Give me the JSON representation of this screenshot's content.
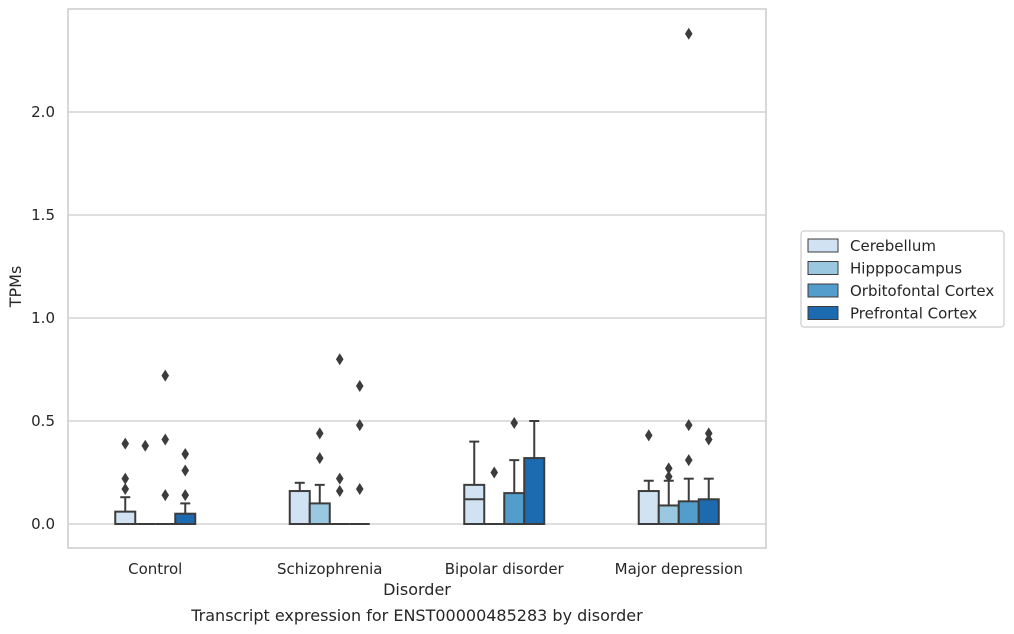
{
  "chart_data": {
    "type": "box",
    "xlabel": "Disorder",
    "ylabel": "TPMs",
    "ylim": [
      -0.12,
      2.52
    ],
    "yticks": [
      0.0,
      0.5,
      1.0,
      1.5,
      2.0
    ],
    "ytick_labels": [
      "0.0",
      "0.5",
      "1.0",
      "1.5",
      "2.0"
    ],
    "grid": "horizontal",
    "legend_position": "center-right outside",
    "categories": [
      "Control",
      "Schizophrenia",
      "Bipolar disorder",
      "Major depression"
    ],
    "series": [
      {
        "name": "Cerebellum",
        "color": "#d1e2f2",
        "boxes": [
          {
            "q1": 0.0,
            "median": 0.0,
            "q3": 0.06,
            "whisker_low": 0.0,
            "whisker_high": 0.13,
            "outliers": [
              0.39,
              0.22,
              0.17
            ]
          },
          {
            "q1": 0.0,
            "median": 0.0,
            "q3": 0.16,
            "whisker_low": 0.0,
            "whisker_high": 0.2,
            "outliers": []
          },
          {
            "q1": 0.0,
            "median": 0.12,
            "q3": 0.19,
            "whisker_low": 0.0,
            "whisker_high": 0.4,
            "outliers": []
          },
          {
            "q1": 0.0,
            "median": 0.0,
            "q3": 0.16,
            "whisker_low": 0.0,
            "whisker_high": 0.21,
            "outliers": [
              0.43
            ]
          }
        ]
      },
      {
        "name": "Hipppocampus",
        "color": "#9ac8e0",
        "boxes": [
          {
            "q1": 0.0,
            "median": 0.0,
            "q3": 0.0,
            "whisker_low": 0.0,
            "whisker_high": 0.0,
            "outliers": [
              0.38
            ]
          },
          {
            "q1": 0.0,
            "median": 0.0,
            "q3": 0.1,
            "whisker_low": 0.0,
            "whisker_high": 0.19,
            "outliers": [
              0.44,
              0.32
            ]
          },
          {
            "q1": 0.0,
            "median": 0.0,
            "q3": 0.0,
            "whisker_low": 0.0,
            "whisker_high": 0.0,
            "outliers": [
              0.25
            ]
          },
          {
            "q1": 0.0,
            "median": 0.0,
            "q3": 0.09,
            "whisker_low": 0.0,
            "whisker_high": 0.21,
            "outliers": [
              0.27,
              0.23
            ]
          }
        ]
      },
      {
        "name": "Orbitofontal Cortex",
        "color": "#529dcc",
        "boxes": [
          {
            "q1": 0.0,
            "median": 0.0,
            "q3": 0.0,
            "whisker_low": 0.0,
            "whisker_high": 0.0,
            "outliers": [
              0.72,
              0.41,
              0.14
            ]
          },
          {
            "q1": 0.0,
            "median": 0.0,
            "q3": 0.0,
            "whisker_low": 0.0,
            "whisker_high": 0.0,
            "outliers": [
              0.8,
              0.22,
              0.16
            ]
          },
          {
            "q1": 0.0,
            "median": 0.0,
            "q3": 0.15,
            "whisker_low": 0.0,
            "whisker_high": 0.31,
            "outliers": [
              0.49
            ]
          },
          {
            "q1": 0.0,
            "median": 0.0,
            "q3": 0.11,
            "whisker_low": 0.0,
            "whisker_high": 0.22,
            "outliers": [
              2.38,
              0.48,
              0.31
            ]
          }
        ]
      },
      {
        "name": "Prefrontal Cortex",
        "color": "#1c6aaf",
        "boxes": [
          {
            "q1": 0.0,
            "median": 0.0,
            "q3": 0.05,
            "whisker_low": 0.0,
            "whisker_high": 0.1,
            "outliers": [
              0.34,
              0.26,
              0.14
            ]
          },
          {
            "q1": 0.0,
            "median": 0.0,
            "q3": 0.0,
            "whisker_low": 0.0,
            "whisker_high": 0.0,
            "outliers": [
              0.67,
              0.48,
              0.17
            ]
          },
          {
            "q1": 0.0,
            "median": 0.0,
            "q3": 0.32,
            "whisker_low": 0.0,
            "whisker_high": 0.5,
            "outliers": []
          },
          {
            "q1": 0.0,
            "median": 0.0,
            "q3": 0.12,
            "whisker_low": 0.0,
            "whisker_high": 0.22,
            "outliers": [
              0.44,
              0.41
            ]
          }
        ]
      }
    ]
  },
  "caption": "Transcript expression for ENST00000485283 by disorder"
}
